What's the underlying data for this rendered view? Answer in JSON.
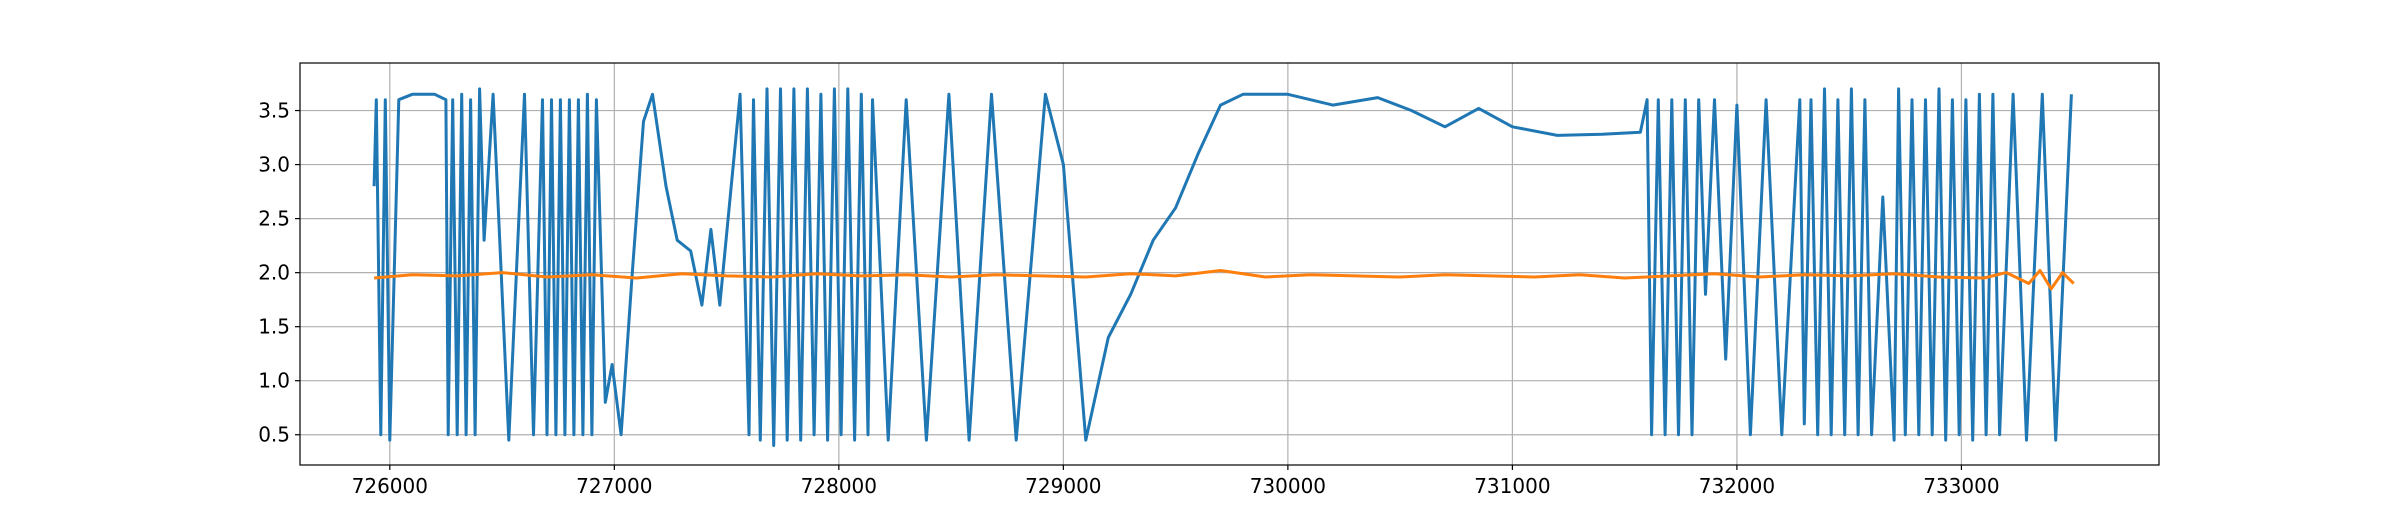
{
  "chart_data": {
    "type": "line",
    "xlim": [
      725600,
      733880
    ],
    "ylim": [
      0.22,
      3.94
    ],
    "xticks": [
      726000,
      727000,
      728000,
      729000,
      730000,
      731000,
      732000,
      733000
    ],
    "yticks": [
      0.5,
      {
        "value": 1,
        "label": "1.0"
      },
      1.5,
      {
        "value": 2,
        "label": "2.0"
      },
      2.5,
      {
        "value": 3,
        "label": "3.0"
      },
      3.5
    ],
    "grid": true,
    "series": [
      {
        "color": "#1f77b4",
        "x": [
          725930,
          725940,
          725960,
          725980,
          726000,
          726040,
          726100,
          726200,
          726250,
          726260,
          726280,
          726300,
          726320,
          726340,
          726360,
          726380,
          726400,
          726420,
          726460,
          726530,
          726600,
          726640,
          726680,
          726700,
          726720,
          726740,
          726760,
          726780,
          726800,
          726820,
          726840,
          726860,
          726880,
          726900,
          726920,
          726960,
          726990,
          727030,
          727080,
          727130,
          727170,
          727230,
          727280,
          727340,
          727390,
          727430,
          727470,
          727530,
          727560,
          727600,
          727620,
          727650,
          727680,
          727710,
          727740,
          727770,
          727800,
          727830,
          727860,
          727890,
          727920,
          727950,
          727980,
          728010,
          728040,
          728070,
          728100,
          728130,
          728150,
          728220,
          728300,
          728390,
          728490,
          728580,
          728680,
          728790,
          728920,
          729000,
          729100,
          729200,
          729300,
          729400,
          729500,
          729600,
          729700,
          729800,
          730000,
          730200,
          730400,
          730550,
          730700,
          730850,
          731000,
          731200,
          731400,
          731570,
          731600,
          731620,
          731650,
          731680,
          731710,
          731740,
          731770,
          731800,
          731830,
          731860,
          731900,
          731950,
          732000,
          732060,
          732130,
          732200,
          732280,
          732300,
          732330,
          732360,
          732390,
          732420,
          732450,
          732480,
          732510,
          732540,
          732570,
          732600,
          732650,
          732700,
          732720,
          732750,
          732780,
          732810,
          732840,
          732870,
          732900,
          732930,
          732960,
          732990,
          733020,
          733050,
          733080,
          733110,
          733140,
          733170,
          733230,
          733290,
          733360,
          733420,
          733490
        ],
        "values": [
          2.8,
          3.6,
          0.5,
          3.6,
          0.45,
          3.6,
          3.65,
          3.65,
          3.6,
          0.5,
          3.6,
          0.5,
          3.65,
          0.5,
          3.6,
          0.5,
          3.7,
          2.3,
          3.65,
          0.45,
          3.65,
          0.5,
          3.6,
          0.5,
          3.6,
          0.5,
          3.6,
          0.5,
          3.6,
          0.5,
          3.6,
          0.5,
          3.65,
          0.5,
          3.6,
          0.8,
          1.15,
          0.5,
          2.0,
          3.4,
          3.65,
          2.8,
          2.3,
          2.2,
          1.7,
          2.4,
          1.7,
          3.0,
          3.65,
          0.5,
          3.6,
          0.45,
          3.7,
          0.4,
          3.7,
          0.45,
          3.7,
          0.45,
          3.7,
          0.5,
          3.65,
          0.45,
          3.7,
          0.5,
          3.7,
          0.45,
          3.65,
          0.5,
          3.6,
          0.45,
          3.6,
          0.45,
          3.65,
          0.45,
          3.65,
          0.45,
          3.65,
          3.0,
          0.45,
          1.4,
          1.8,
          2.3,
          2.6,
          3.1,
          3.55,
          3.65,
          3.65,
          3.55,
          3.62,
          3.5,
          3.35,
          3.52,
          3.35,
          3.27,
          3.28,
          3.3,
          3.6,
          0.5,
          3.6,
          0.5,
          3.6,
          0.5,
          3.6,
          0.5,
          3.6,
          1.8,
          3.6,
          1.2,
          3.55,
          0.5,
          3.6,
          0.5,
          3.6,
          0.6,
          3.6,
          0.5,
          3.7,
          0.5,
          3.6,
          0.5,
          3.7,
          0.5,
          3.6,
          0.5,
          2.7,
          0.45,
          3.7,
          0.5,
          3.6,
          0.5,
          3.6,
          0.5,
          3.7,
          0.45,
          3.6,
          0.5,
          3.6,
          0.45,
          3.65,
          0.5,
          3.65,
          0.5,
          3.65,
          0.45,
          3.65,
          0.45,
          3.65
        ]
      },
      {
        "color": "#ff7f0e",
        "x": [
          725930,
          726100,
          726300,
          726500,
          726700,
          726900,
          727100,
          727300,
          727500,
          727700,
          727900,
          728100,
          728300,
          728500,
          728700,
          728900,
          729100,
          729300,
          729500,
          729700,
          729900,
          730100,
          730300,
          730500,
          730700,
          730900,
          731100,
          731300,
          731500,
          731700,
          731900,
          732100,
          732300,
          732500,
          732700,
          732900,
          733100,
          733200,
          733300,
          733350,
          733400,
          733450,
          733500
        ],
        "values": [
          1.95,
          1.98,
          1.97,
          2.0,
          1.96,
          1.98,
          1.95,
          1.99,
          1.97,
          1.96,
          1.99,
          1.97,
          1.98,
          1.96,
          1.98,
          1.97,
          1.96,
          1.99,
          1.97,
          2.02,
          1.96,
          1.98,
          1.97,
          1.96,
          1.98,
          1.97,
          1.96,
          1.98,
          1.95,
          1.97,
          1.99,
          1.96,
          1.98,
          1.97,
          1.99,
          1.96,
          1.95,
          2.0,
          1.9,
          2.02,
          1.85,
          2.0,
          1.9
        ]
      }
    ]
  }
}
